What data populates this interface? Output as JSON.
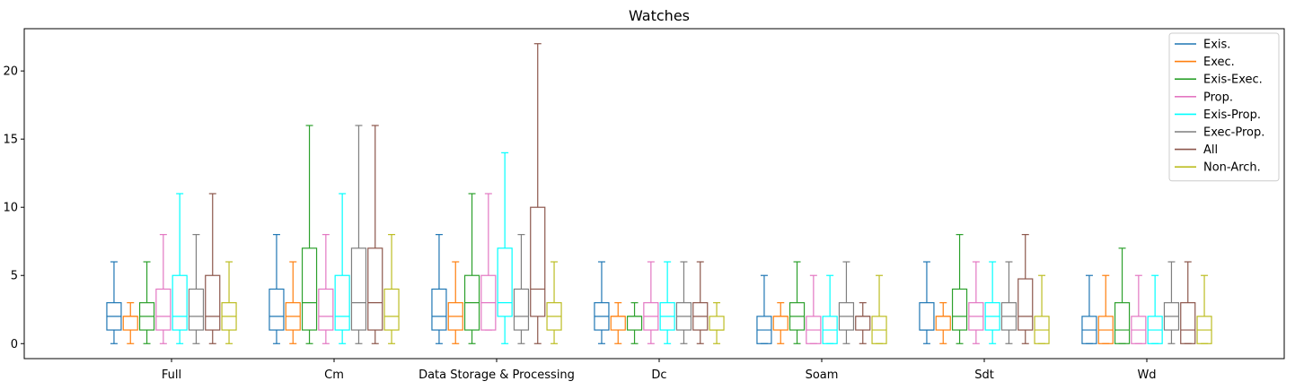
{
  "chart_data": {
    "type": "box",
    "title": "Watches",
    "xlabel": "",
    "ylabel": "",
    "ylim": [
      -1.1,
      23.1
    ],
    "yticks": [
      0,
      5,
      10,
      15,
      20
    ],
    "grid": false,
    "legend_position": "top-right",
    "categories": [
      "Full",
      "Cm",
      "Data Storage & Processing",
      "Dc",
      "Soam",
      "Sdt",
      "Wd"
    ],
    "series": [
      {
        "name": "Exis.",
        "color": "#1f77b4",
        "boxes": [
          {
            "whislo": 0,
            "q1": 1,
            "med": 2,
            "q3": 3,
            "whishi": 6
          },
          {
            "whislo": 0,
            "q1": 1,
            "med": 2,
            "q3": 4,
            "whishi": 8
          },
          {
            "whislo": 0,
            "q1": 1,
            "med": 2,
            "q3": 4,
            "whishi": 8
          },
          {
            "whislo": 0,
            "q1": 1,
            "med": 2,
            "q3": 3,
            "whishi": 6
          },
          {
            "whislo": 0,
            "q1": 0,
            "med": 1,
            "q3": 2,
            "whishi": 5
          },
          {
            "whislo": 0,
            "q1": 1,
            "med": 1,
            "q3": 3,
            "whishi": 6
          },
          {
            "whislo": 0,
            "q1": 0,
            "med": 1,
            "q3": 2,
            "whishi": 5
          }
        ]
      },
      {
        "name": "Exec.",
        "color": "#ff7f0e",
        "boxes": [
          {
            "whislo": 0,
            "q1": 1,
            "med": 2,
            "q3": 2,
            "whishi": 3
          },
          {
            "whislo": 0,
            "q1": 1,
            "med": 2,
            "q3": 3,
            "whishi": 6
          },
          {
            "whislo": 0,
            "q1": 1,
            "med": 2,
            "q3": 3,
            "whishi": 6
          },
          {
            "whislo": 0,
            "q1": 1,
            "med": 2,
            "q3": 2,
            "whishi": 3
          },
          {
            "whislo": 0,
            "q1": 1,
            "med": 2,
            "q3": 2,
            "whishi": 3
          },
          {
            "whislo": 0,
            "q1": 1,
            "med": 2,
            "q3": 2,
            "whishi": 3
          },
          {
            "whislo": 0,
            "q1": 0,
            "med": 1,
            "q3": 2,
            "whishi": 5
          }
        ]
      },
      {
        "name": "Exis-Exec.",
        "color": "#2ca02c",
        "boxes": [
          {
            "whislo": 0,
            "q1": 1,
            "med": 2,
            "q3": 3,
            "whishi": 6
          },
          {
            "whislo": 0,
            "q1": 1,
            "med": 3,
            "q3": 7,
            "whishi": 16
          },
          {
            "whislo": 0,
            "q1": 1,
            "med": 3,
            "q3": 5,
            "whishi": 11
          },
          {
            "whislo": 0,
            "q1": 1,
            "med": 2,
            "q3": 2,
            "whishi": 3
          },
          {
            "whislo": 0,
            "q1": 1,
            "med": 2,
            "q3": 3,
            "whishi": 6
          },
          {
            "whislo": 0,
            "q1": 1,
            "med": 2,
            "q3": 4,
            "whishi": 8
          },
          {
            "whislo": 0,
            "q1": 0,
            "med": 1,
            "q3": 3,
            "whishi": 7
          }
        ]
      },
      {
        "name": "Prop.",
        "color": "#e377c2",
        "boxes": [
          {
            "whislo": 0,
            "q1": 1,
            "med": 2,
            "q3": 4,
            "whishi": 8
          },
          {
            "whislo": 0,
            "q1": 1,
            "med": 2,
            "q3": 4,
            "whishi": 8
          },
          {
            "whislo": 1,
            "q1": 1,
            "med": 3,
            "q3": 5,
            "whishi": 11
          },
          {
            "whislo": 0,
            "q1": 1,
            "med": 2,
            "q3": 3,
            "whishi": 6
          },
          {
            "whislo": 0,
            "q1": 0,
            "med": 1,
            "q3": 2,
            "whishi": 5
          },
          {
            "whislo": 0,
            "q1": 1,
            "med": 2,
            "q3": 3,
            "whishi": 6
          },
          {
            "whislo": 0,
            "q1": 0,
            "med": 1,
            "q3": 2,
            "whishi": 5
          }
        ]
      },
      {
        "name": "Exis-Prop.",
        "color": "#00ffff",
        "boxes": [
          {
            "whislo": 0,
            "q1": 1,
            "med": 2,
            "q3": 5,
            "whishi": 11
          },
          {
            "whislo": 0,
            "q1": 1,
            "med": 2,
            "q3": 5,
            "whishi": 11
          },
          {
            "whislo": 0,
            "q1": 2,
            "med": 3,
            "q3": 7,
            "whishi": 14
          },
          {
            "whislo": 0,
            "q1": 1,
            "med": 2,
            "q3": 3,
            "whishi": 6
          },
          {
            "whislo": 0,
            "q1": 0,
            "med": 1,
            "q3": 2,
            "whishi": 5
          },
          {
            "whislo": 0,
            "q1": 1,
            "med": 2,
            "q3": 3,
            "whishi": 6
          },
          {
            "whislo": 0,
            "q1": 0,
            "med": 1,
            "q3": 2,
            "whishi": 5
          }
        ]
      },
      {
        "name": "Exec-Prop.",
        "color": "#7f7f7f",
        "boxes": [
          {
            "whislo": 0,
            "q1": 1,
            "med": 2,
            "q3": 4,
            "whishi": 8
          },
          {
            "whislo": 0,
            "q1": 1,
            "med": 3,
            "q3": 7,
            "whishi": 16
          },
          {
            "whislo": 0,
            "q1": 1,
            "med": 2,
            "q3": 4,
            "whishi": 8
          },
          {
            "whislo": 0,
            "q1": 1,
            "med": 2,
            "q3": 3,
            "whishi": 6
          },
          {
            "whislo": 0,
            "q1": 1,
            "med": 2,
            "q3": 3,
            "whishi": 6
          },
          {
            "whislo": 0,
            "q1": 1,
            "med": 2,
            "q3": 3,
            "whishi": 6
          },
          {
            "whislo": 0,
            "q1": 1,
            "med": 2,
            "q3": 3,
            "whishi": 6
          }
        ]
      },
      {
        "name": "All",
        "color": "#8c564b",
        "boxes": [
          {
            "whislo": 0,
            "q1": 1,
            "med": 2,
            "q3": 5,
            "whishi": 11
          },
          {
            "whislo": 0,
            "q1": 1,
            "med": 3,
            "q3": 7,
            "whishi": 16
          },
          {
            "whislo": 0,
            "q1": 2,
            "med": 4,
            "q3": 10,
            "whishi": 22
          },
          {
            "whislo": 0,
            "q1": 1,
            "med": 2,
            "q3": 3,
            "whishi": 6
          },
          {
            "whislo": 0,
            "q1": 1,
            "med": 2,
            "q3": 2,
            "whishi": 3
          },
          {
            "whislo": 0,
            "q1": 1,
            "med": 2,
            "q3": 4.75,
            "whishi": 8
          },
          {
            "whislo": 0,
            "q1": 0,
            "med": 1,
            "q3": 3,
            "whishi": 6
          }
        ]
      },
      {
        "name": "Non-Arch.",
        "color": "#bcbd22",
        "boxes": [
          {
            "whislo": 0,
            "q1": 1,
            "med": 2,
            "q3": 3,
            "whishi": 6
          },
          {
            "whislo": 0,
            "q1": 1,
            "med": 2,
            "q3": 4,
            "whishi": 8
          },
          {
            "whislo": 0,
            "q1": 1,
            "med": 2,
            "q3": 3,
            "whishi": 6
          },
          {
            "whislo": 0,
            "q1": 1,
            "med": 1,
            "q3": 2,
            "whishi": 3
          },
          {
            "whislo": 0,
            "q1": 0,
            "med": 1,
            "q3": 2,
            "whishi": 5
          },
          {
            "whislo": 0,
            "q1": 0,
            "med": 1,
            "q3": 2,
            "whishi": 5
          },
          {
            "whislo": 0,
            "q1": 0,
            "med": 1,
            "q3": 2,
            "whishi": 5
          }
        ]
      }
    ]
  }
}
